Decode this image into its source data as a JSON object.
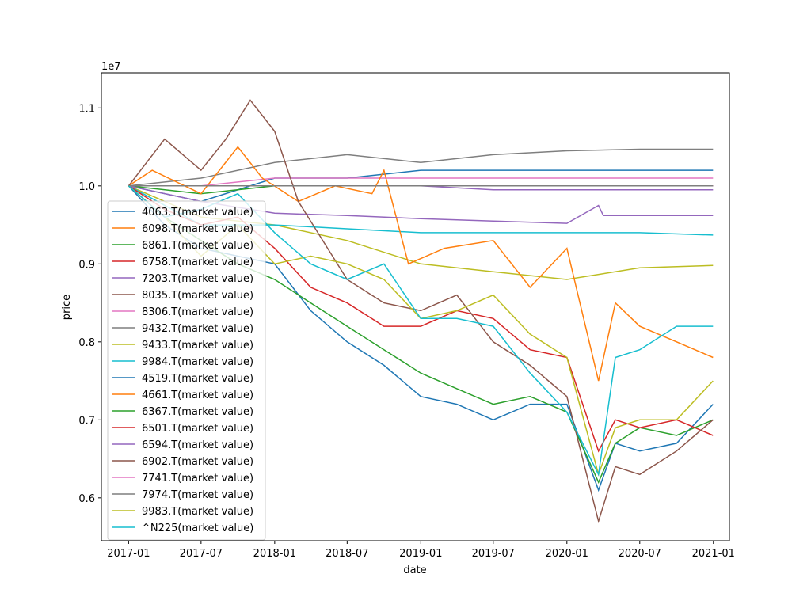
{
  "chart_data": {
    "type": "line",
    "xlabel": "date",
    "ylabel": "price",
    "y_offset_label": "1e7",
    "y_scale": 10000000,
    "xlim": [
      "2016-10-25",
      "2021-02-10"
    ],
    "ylim": [
      0.545,
      1.145
    ],
    "x_ticks": [
      "2017-01",
      "2017-07",
      "2018-01",
      "2018-07",
      "2019-01",
      "2019-07",
      "2020-01",
      "2020-07",
      "2021-01"
    ],
    "y_ticks": [
      0.6,
      0.7,
      0.8,
      0.9,
      1.0,
      1.1
    ],
    "y_tick_labels": [
      "0.6",
      "0.7",
      "0.8",
      "0.9",
      "1.0",
      "1.1"
    ],
    "grid": false,
    "legend_position": "left",
    "series": [
      {
        "name": "4063.T(market value)",
        "color": "#1f77b4",
        "points": [
          [
            "2017-01-01",
            1.0
          ],
          [
            "2017-07-01",
            0.98
          ],
          [
            "2018-01-01",
            1.01
          ],
          [
            "2018-07-01",
            1.01
          ],
          [
            "2019-01-01",
            1.02
          ],
          [
            "2019-07-01",
            1.02
          ],
          [
            "2020-01-01",
            1.02
          ],
          [
            "2020-07-01",
            1.02
          ],
          [
            "2020-12-31",
            1.02
          ]
        ]
      },
      {
        "name": "6098.T(market value)",
        "color": "#ff7f0e",
        "points": [
          [
            "2017-01-01",
            1.0
          ],
          [
            "2017-07-01",
            1.0
          ],
          [
            "2018-01-01",
            1.0
          ],
          [
            "2018-07-01",
            1.0
          ],
          [
            "2019-01-01",
            1.0
          ],
          [
            "2019-07-01",
            1.0
          ],
          [
            "2020-01-01",
            1.0
          ],
          [
            "2020-07-01",
            1.0
          ],
          [
            "2020-12-31",
            1.0
          ]
        ]
      },
      {
        "name": "6861.T(market value)",
        "color": "#2ca02c",
        "points": [
          [
            "2017-01-01",
            1.0
          ],
          [
            "2017-07-01",
            0.99
          ],
          [
            "2018-01-01",
            1.0
          ],
          [
            "2018-07-01",
            1.0
          ],
          [
            "2019-01-01",
            1.0
          ],
          [
            "2019-07-01",
            1.0
          ],
          [
            "2020-01-01",
            1.0
          ],
          [
            "2020-07-01",
            1.0
          ],
          [
            "2020-12-31",
            1.0
          ]
        ]
      },
      {
        "name": "6758.T(market value)",
        "color": "#d62728",
        "points": [
          [
            "2017-01-01",
            1.0
          ],
          [
            "2017-07-01",
            1.0
          ],
          [
            "2018-01-01",
            1.0
          ],
          [
            "2018-07-01",
            1.0
          ],
          [
            "2019-01-01",
            1.0
          ],
          [
            "2019-07-01",
            1.0
          ],
          [
            "2020-01-01",
            1.0
          ],
          [
            "2020-07-01",
            1.0
          ],
          [
            "2020-12-31",
            1.0
          ]
        ]
      },
      {
        "name": "7203.T(market value)",
        "color": "#9467bd",
        "points": [
          [
            "2017-01-01",
            1.0
          ],
          [
            "2017-07-01",
            1.0
          ],
          [
            "2018-01-01",
            1.0
          ],
          [
            "2018-07-01",
            1.0
          ],
          [
            "2019-01-01",
            1.0
          ],
          [
            "2019-07-01",
            0.995
          ],
          [
            "2020-01-01",
            0.995
          ],
          [
            "2020-07-01",
            0.995
          ],
          [
            "2020-12-31",
            0.995
          ]
        ]
      },
      {
        "name": "8035.T(market value)",
        "color": "#8c564b",
        "points": [
          [
            "2017-01-01",
            1.0
          ],
          [
            "2017-07-01",
            1.0
          ],
          [
            "2018-01-01",
            1.0
          ],
          [
            "2018-07-01",
            1.0
          ],
          [
            "2019-01-01",
            1.0
          ],
          [
            "2019-07-01",
            1.0
          ],
          [
            "2020-01-01",
            1.0
          ],
          [
            "2020-07-01",
            1.0
          ],
          [
            "2020-12-31",
            1.0
          ]
        ]
      },
      {
        "name": "8306.T(market value)",
        "color": "#e377c2",
        "points": [
          [
            "2017-01-01",
            1.0
          ],
          [
            "2017-07-01",
            1.0
          ],
          [
            "2018-01-01",
            1.01
          ],
          [
            "2018-07-01",
            1.01
          ],
          [
            "2019-01-01",
            1.01
          ],
          [
            "2019-07-01",
            1.01
          ],
          [
            "2020-01-01",
            1.01
          ],
          [
            "2020-07-01",
            1.01
          ],
          [
            "2020-12-31",
            1.01
          ]
        ]
      },
      {
        "name": "9432.T(market value)",
        "color": "#7f7f7f",
        "points": [
          [
            "2017-01-01",
            1.0
          ],
          [
            "2017-07-01",
            1.01
          ],
          [
            "2018-01-01",
            1.03
          ],
          [
            "2018-07-01",
            1.04
          ],
          [
            "2019-01-01",
            1.03
          ],
          [
            "2019-07-01",
            1.04
          ],
          [
            "2020-01-01",
            1.045
          ],
          [
            "2020-07-01",
            1.047
          ],
          [
            "2020-12-31",
            1.047
          ]
        ]
      },
      {
        "name": "9433.T(market value)",
        "color": "#bcbd22",
        "points": [
          [
            "2017-01-01",
            1.0
          ],
          [
            "2017-07-01",
            0.96
          ],
          [
            "2018-01-01",
            0.95
          ],
          [
            "2018-07-01",
            0.93
          ],
          [
            "2019-01-01",
            0.9
          ],
          [
            "2019-07-01",
            0.89
          ],
          [
            "2020-01-01",
            0.88
          ],
          [
            "2020-07-01",
            0.895
          ],
          [
            "2020-12-31",
            0.898
          ]
        ]
      },
      {
        "name": "9984.T(market value)",
        "color": "#17becf",
        "points": [
          [
            "2017-01-01",
            1.0
          ],
          [
            "2017-07-01",
            0.95
          ],
          [
            "2018-01-01",
            0.95
          ],
          [
            "2018-07-01",
            0.945
          ],
          [
            "2019-01-01",
            0.94
          ],
          [
            "2019-07-01",
            0.94
          ],
          [
            "2020-01-01",
            0.94
          ],
          [
            "2020-07-01",
            0.94
          ],
          [
            "2020-12-31",
            0.937
          ]
        ]
      },
      {
        "name": "4519.T(market value)",
        "color": "#1f77b4",
        "points": [
          [
            "2017-01-01",
            1.0
          ],
          [
            "2017-04-01",
            0.95
          ],
          [
            "2017-07-01",
            0.92
          ],
          [
            "2017-10-01",
            0.91
          ],
          [
            "2018-01-01",
            0.9
          ],
          [
            "2018-04-01",
            0.84
          ],
          [
            "2018-07-01",
            0.8
          ],
          [
            "2018-10-01",
            0.77
          ],
          [
            "2019-01-01",
            0.73
          ],
          [
            "2019-04-01",
            0.72
          ],
          [
            "2019-07-01",
            0.7
          ],
          [
            "2019-10-01",
            0.72
          ],
          [
            "2020-01-01",
            0.72
          ],
          [
            "2020-03-20",
            0.61
          ],
          [
            "2020-05-01",
            0.67
          ],
          [
            "2020-07-01",
            0.66
          ],
          [
            "2020-10-01",
            0.67
          ],
          [
            "2020-12-31",
            0.72
          ]
        ]
      },
      {
        "name": "4661.T(market value)",
        "color": "#ff7f0e",
        "points": [
          [
            "2017-01-01",
            1.0
          ],
          [
            "2017-03-01",
            1.02
          ],
          [
            "2017-07-01",
            0.99
          ],
          [
            "2017-10-01",
            1.05
          ],
          [
            "2017-12-01",
            1.01
          ],
          [
            "2018-03-01",
            0.98
          ],
          [
            "2018-06-01",
            1.0
          ],
          [
            "2018-09-01",
            0.99
          ],
          [
            "2018-10-01",
            1.02
          ],
          [
            "2018-12-01",
            0.9
          ],
          [
            "2019-03-01",
            0.92
          ],
          [
            "2019-07-01",
            0.93
          ],
          [
            "2019-10-01",
            0.87
          ],
          [
            "2020-01-01",
            0.92
          ],
          [
            "2020-03-20",
            0.75
          ],
          [
            "2020-05-01",
            0.85
          ],
          [
            "2020-07-01",
            0.82
          ],
          [
            "2020-10-01",
            0.8
          ],
          [
            "2020-12-31",
            0.78
          ]
        ]
      },
      {
        "name": "6367.T(market value)",
        "color": "#2ca02c",
        "points": [
          [
            "2017-01-01",
            1.0
          ],
          [
            "2017-04-01",
            0.96
          ],
          [
            "2017-07-01",
            0.93
          ],
          [
            "2017-10-01",
            0.9
          ],
          [
            "2018-01-01",
            0.88
          ],
          [
            "2018-04-01",
            0.85
          ],
          [
            "2018-07-01",
            0.82
          ],
          [
            "2018-10-01",
            0.79
          ],
          [
            "2019-01-01",
            0.76
          ],
          [
            "2019-04-01",
            0.74
          ],
          [
            "2019-07-01",
            0.72
          ],
          [
            "2019-10-01",
            0.73
          ],
          [
            "2020-01-01",
            0.71
          ],
          [
            "2020-03-20",
            0.62
          ],
          [
            "2020-05-01",
            0.67
          ],
          [
            "2020-07-01",
            0.69
          ],
          [
            "2020-10-01",
            0.68
          ],
          [
            "2020-12-31",
            0.7
          ]
        ]
      },
      {
        "name": "6501.T(market value)",
        "color": "#d62728",
        "points": [
          [
            "2017-01-01",
            1.0
          ],
          [
            "2017-04-01",
            0.97
          ],
          [
            "2017-07-01",
            0.95
          ],
          [
            "2017-10-01",
            0.96
          ],
          [
            "2018-01-01",
            0.92
          ],
          [
            "2018-04-01",
            0.87
          ],
          [
            "2018-07-01",
            0.85
          ],
          [
            "2018-10-01",
            0.82
          ],
          [
            "2019-01-01",
            0.82
          ],
          [
            "2019-04-01",
            0.84
          ],
          [
            "2019-07-01",
            0.83
          ],
          [
            "2019-10-01",
            0.79
          ],
          [
            "2020-01-01",
            0.78
          ],
          [
            "2020-03-20",
            0.66
          ],
          [
            "2020-05-01",
            0.7
          ],
          [
            "2020-07-01",
            0.69
          ],
          [
            "2020-10-01",
            0.7
          ],
          [
            "2020-12-31",
            0.68
          ]
        ]
      },
      {
        "name": "6594.T(market value)",
        "color": "#9467bd",
        "points": [
          [
            "2017-01-01",
            1.0
          ],
          [
            "2017-07-01",
            0.98
          ],
          [
            "2018-01-01",
            0.965
          ],
          [
            "2018-07-01",
            0.962
          ],
          [
            "2019-01-01",
            0.958
          ],
          [
            "2019-07-01",
            0.955
          ],
          [
            "2020-01-01",
            0.952
          ],
          [
            "2020-03-20",
            0.975
          ],
          [
            "2020-04-01",
            0.962
          ],
          [
            "2020-07-01",
            0.962
          ],
          [
            "2020-12-31",
            0.962
          ]
        ]
      },
      {
        "name": "6902.T(market value)",
        "color": "#8c564b",
        "points": [
          [
            "2017-01-01",
            1.0
          ],
          [
            "2017-04-01",
            1.06
          ],
          [
            "2017-07-01",
            1.02
          ],
          [
            "2017-09-01",
            1.06
          ],
          [
            "2017-11-01",
            1.11
          ],
          [
            "2018-01-01",
            1.07
          ],
          [
            "2018-03-01",
            0.98
          ],
          [
            "2018-07-01",
            0.88
          ],
          [
            "2018-10-01",
            0.85
          ],
          [
            "2019-01-01",
            0.84
          ],
          [
            "2019-04-01",
            0.86
          ],
          [
            "2019-07-01",
            0.8
          ],
          [
            "2019-10-01",
            0.77
          ],
          [
            "2020-01-01",
            0.73
          ],
          [
            "2020-03-20",
            0.57
          ],
          [
            "2020-05-01",
            0.64
          ],
          [
            "2020-07-01",
            0.63
          ],
          [
            "2020-10-01",
            0.66
          ],
          [
            "2020-12-31",
            0.7
          ]
        ]
      },
      {
        "name": "7741.T(market value)",
        "color": "#e377c2",
        "points": [
          [
            "2017-01-01",
            1.0
          ],
          [
            "2017-07-01",
            1.0
          ],
          [
            "2018-01-01",
            1.0
          ],
          [
            "2018-07-01",
            1.0
          ],
          [
            "2019-01-01",
            1.0
          ],
          [
            "2019-07-01",
            1.0
          ],
          [
            "2020-01-01",
            1.0
          ],
          [
            "2020-07-01",
            1.0
          ],
          [
            "2020-12-31",
            1.0
          ]
        ]
      },
      {
        "name": "7974.T(market value)",
        "color": "#7f7f7f",
        "points": [
          [
            "2017-01-01",
            1.0
          ],
          [
            "2017-07-01",
            1.0
          ],
          [
            "2018-01-01",
            1.0
          ],
          [
            "2018-07-01",
            1.0
          ],
          [
            "2019-01-01",
            1.0
          ],
          [
            "2019-07-01",
            1.0
          ],
          [
            "2020-01-01",
            1.0
          ],
          [
            "2020-07-01",
            1.0
          ],
          [
            "2020-12-31",
            1.0
          ]
        ]
      },
      {
        "name": "9983.T(market value)",
        "color": "#bcbd22",
        "points": [
          [
            "2017-01-01",
            1.0
          ],
          [
            "2017-04-01",
            0.96
          ],
          [
            "2017-07-01",
            0.91
          ],
          [
            "2017-10-01",
            0.95
          ],
          [
            "2018-01-01",
            0.9
          ],
          [
            "2018-04-01",
            0.91
          ],
          [
            "2018-07-01",
            0.9
          ],
          [
            "2018-10-01",
            0.88
          ],
          [
            "2019-01-01",
            0.83
          ],
          [
            "2019-04-01",
            0.84
          ],
          [
            "2019-07-01",
            0.86
          ],
          [
            "2019-10-01",
            0.81
          ],
          [
            "2020-01-01",
            0.78
          ],
          [
            "2020-03-20",
            0.63
          ],
          [
            "2020-05-01",
            0.69
          ],
          [
            "2020-07-01",
            0.7
          ],
          [
            "2020-10-01",
            0.7
          ],
          [
            "2020-12-31",
            0.75
          ]
        ]
      },
      {
        "name": "^N225(market value)",
        "color": "#17becf",
        "points": [
          [
            "2017-01-01",
            1.0
          ],
          [
            "2017-04-01",
            0.96
          ],
          [
            "2017-07-01",
            0.97
          ],
          [
            "2017-10-01",
            0.99
          ],
          [
            "2018-01-01",
            0.94
          ],
          [
            "2018-04-01",
            0.9
          ],
          [
            "2018-07-01",
            0.88
          ],
          [
            "2018-10-01",
            0.9
          ],
          [
            "2019-01-01",
            0.83
          ],
          [
            "2019-04-01",
            0.83
          ],
          [
            "2019-07-01",
            0.82
          ],
          [
            "2019-10-01",
            0.76
          ],
          [
            "2020-01-01",
            0.71
          ],
          [
            "2020-03-20",
            0.63
          ],
          [
            "2020-05-01",
            0.78
          ],
          [
            "2020-07-01",
            0.79
          ],
          [
            "2020-10-01",
            0.82
          ],
          [
            "2020-12-31",
            0.82
          ]
        ]
      }
    ]
  }
}
